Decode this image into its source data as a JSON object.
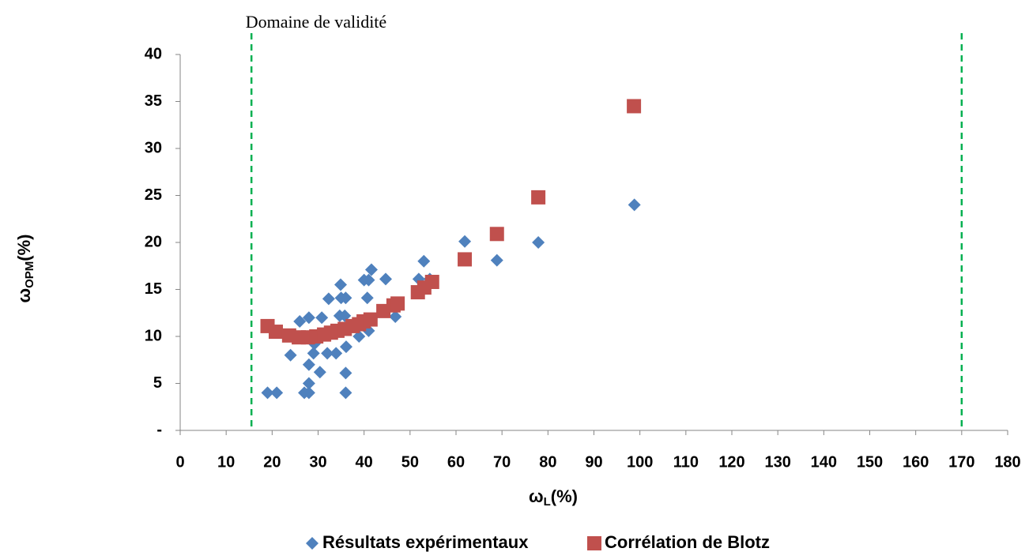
{
  "chart_data": {
    "type": "scatter",
    "annotation": "Domaine de validité",
    "xlabel": [
      "ω",
      "L",
      "(%)"
    ],
    "ylabel": [
      "ω",
      "OPM",
      "(%)"
    ],
    "xlim": [
      0,
      180
    ],
    "ylim": [
      0,
      40
    ],
    "xticks": [
      0,
      10,
      20,
      30,
      40,
      50,
      60,
      70,
      80,
      90,
      100,
      110,
      120,
      130,
      140,
      150,
      160,
      170,
      180
    ],
    "yticks": [
      {
        "value": 0,
        "label": "-"
      },
      5,
      10,
      15,
      20,
      25,
      30,
      35,
      40
    ],
    "vlines": {
      "values": [
        15.5,
        170
      ],
      "color": "#00b050"
    },
    "grid": false,
    "legend": "bottom",
    "series": [
      {
        "name": "Résultats expérimentaux",
        "color": "#4f81bd",
        "marker": "diamond",
        "x": [
          19,
          21,
          24,
          26,
          27,
          28,
          28,
          28,
          28,
          29,
          29.2,
          29.6,
          30.4,
          30.8,
          31.8,
          32,
          32.3,
          33.9,
          34.7,
          34.9,
          35,
          36,
          36,
          36.1,
          36,
          35.8,
          38.9,
          40,
          41,
          40.7,
          41,
          41.6,
          44.7,
          46.8,
          51.9,
          53,
          54.3,
          61.9,
          68.9,
          77.9,
          98.8
        ],
        "values": [
          4,
          4,
          8,
          11.6,
          4,
          4,
          5,
          7,
          12,
          8.2,
          9.2,
          10,
          6.2,
          12,
          10.3,
          8.2,
          14,
          8.2,
          12.2,
          15.5,
          14.1,
          4,
          6.1,
          8.9,
          14.1,
          12.2,
          10,
          16,
          16,
          14.1,
          10.6,
          17.1,
          16.1,
          12.1,
          16.1,
          18,
          16.1,
          20.1,
          18.1,
          20,
          24
        ]
      },
      {
        "name": "Corrélation de Blotz",
        "color": "#c0504d",
        "marker": "square",
        "x": [
          19,
          20.8,
          23.7,
          25.8,
          27.8,
          29.6,
          31.3,
          32.8,
          34.2,
          35.8,
          37.5,
          38.9,
          39.9,
          41.4,
          44.2,
          46.4,
          47.3,
          51.7,
          53.1,
          54.8,
          61.9,
          68.9,
          77.9,
          98.7
        ],
        "values": [
          11.1,
          10.5,
          10.1,
          9.9,
          9.9,
          10,
          10.2,
          10.4,
          10.6,
          10.8,
          11.1,
          11.3,
          11.6,
          11.8,
          12.7,
          13.3,
          13.5,
          14.7,
          15.2,
          15.8,
          18.2,
          20.9,
          24.8,
          34.5
        ]
      }
    ]
  }
}
